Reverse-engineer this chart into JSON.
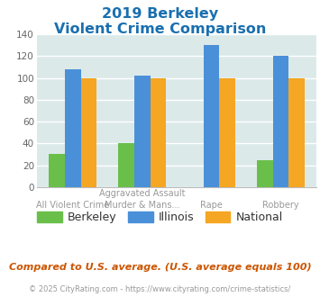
{
  "title_line1": "2019 Berkeley",
  "title_line2": "Violent Crime Comparison",
  "cat_labels_line1": [
    "",
    "Aggravated Assault",
    "",
    ""
  ],
  "cat_labels_line2": [
    "All Violent Crime",
    "Murder & Mans...",
    "Rape",
    "Robbery"
  ],
  "berkeley": [
    30,
    40,
    0,
    25
  ],
  "illinois": [
    108,
    102,
    130,
    120
  ],
  "national": [
    100,
    100,
    100,
    100
  ],
  "bar_colors": {
    "berkeley": "#6abf4b",
    "illinois": "#4a90d9",
    "national": "#f5a623"
  },
  "ylim": [
    0,
    140
  ],
  "yticks": [
    0,
    20,
    40,
    60,
    80,
    100,
    120,
    140
  ],
  "plot_bg": "#dce9e9",
  "title_color": "#1a6faf",
  "footer_text": "Compared to U.S. average. (U.S. average equals 100)",
  "credit_text": "© 2025 CityRating.com - https://www.cityrating.com/crime-statistics/",
  "legend_labels": [
    "Berkeley",
    "Illinois",
    "National"
  ],
  "xlabel_color": "#999999",
  "footer_color": "#cc5500",
  "credit_color": "#999999",
  "legend_text_color": "#333333"
}
